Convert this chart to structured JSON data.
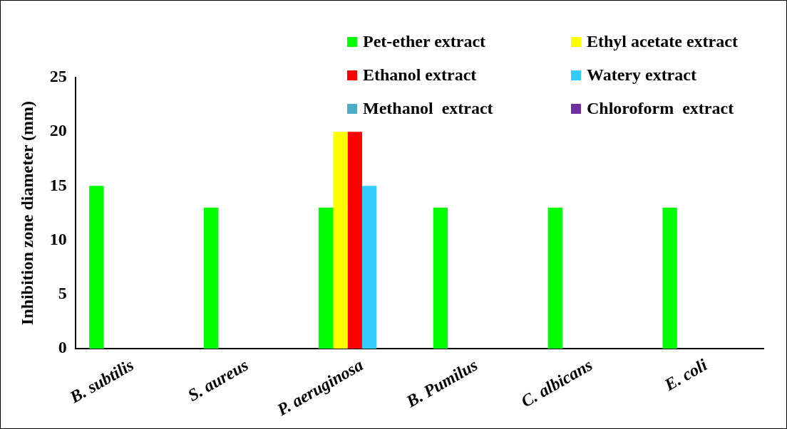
{
  "chart_data": {
    "type": "bar",
    "ylabel": "Inhibition zone diameter (mm)",
    "categories": [
      "B. subtilis",
      "S. aureus",
      "P. aeruginosa",
      "B. Pumilus",
      "C. albicans",
      "E. coli"
    ],
    "series": [
      {
        "name": "Pet-ether extract",
        "color": "#00ff00",
        "values": [
          15,
          13,
          13,
          13,
          13,
          13
        ]
      },
      {
        "name": "Ethyl acetate extract",
        "color": "#ffff00",
        "values": [
          0,
          0,
          20,
          0,
          0,
          0
        ]
      },
      {
        "name": "Ethanol extract",
        "color": "#ff0000",
        "values": [
          0,
          0,
          20,
          0,
          0,
          0
        ]
      },
      {
        "name": "Watery extract",
        "color": "#33ccff",
        "values": [
          0,
          0,
          15,
          0,
          0,
          0
        ]
      },
      {
        "name": "Methanol  extract",
        "color": "#4bacc6",
        "values": [
          0,
          0,
          0,
          0,
          0,
          0
        ]
      },
      {
        "name": "Chloroform  extract",
        "color": "#7030a0",
        "values": [
          0,
          0,
          0,
          0,
          0,
          0
        ]
      }
    ],
    "ylim": [
      0,
      25
    ],
    "yticks": [
      0,
      5,
      10,
      15,
      20,
      25
    ],
    "grid": false,
    "legend": "top right"
  }
}
